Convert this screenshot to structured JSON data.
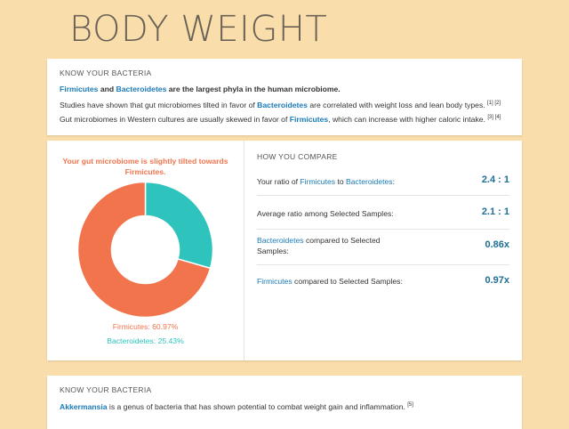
{
  "page_title": "BODY WEIGHT",
  "know_bacteria_1": {
    "heading": "KNOW YOUR BACTERIA",
    "line1": {
      "t1": "Firmicutes",
      "t2": " and ",
      "t3": "Bacteroidetes",
      "t4": " are the largest phyla in the human microbiome."
    },
    "line2": {
      "t1": "Studies have shown that gut microbiomes tilted in favor of ",
      "t2": "Bacteroidetes",
      "t3": " are correlated with weight loss and lean body types.",
      "ref": "[1] [2]"
    },
    "line3": {
      "t1": "Gut microbiomes in Western cultures are usually skewed in favor of ",
      "t2": "Firmicutes",
      "t3": ", which can increase with higher caloric intake.",
      "ref": "[3] [4]"
    }
  },
  "chart_data": {
    "type": "pie",
    "title": "Your gut microbiome is slightly tilted towards Firmicutes.",
    "categories": [
      "Firmicutes",
      "Bacteroidetes"
    ],
    "values": [
      60.97,
      25.43
    ],
    "value_labels": [
      "Firmicutes: 60.97%",
      "Bacteroidetes: 25.43%"
    ],
    "colors": [
      "#f2744d",
      "#2ec4bd"
    ]
  },
  "compare": {
    "heading": "HOW YOU COMPARE",
    "rows": [
      {
        "p1": "Your ratio of ",
        "p2": "Firmicutes",
        "p3": " to ",
        "p4": "Bacteroidetes",
        "p5": ":",
        "value": "2.4 : 1"
      },
      {
        "p1": "Average ratio among Selected Samples:",
        "value": "2.1 : 1"
      },
      {
        "p1": "Bacteroidetes",
        "p2": " compared to Selected",
        "p3": "Samples:",
        "value": "0.86x"
      },
      {
        "p1": "Firmicutes",
        "p2": " compared to Selected Samples:",
        "value": "0.97x"
      }
    ]
  },
  "know_bacteria_2": {
    "heading": "KNOW YOUR BACTERIA",
    "t1": "Akkermansia",
    "t2": " is a genus of bacteria that has shown potential to combat weight gain and inflammation.",
    "ref": "[5]"
  }
}
